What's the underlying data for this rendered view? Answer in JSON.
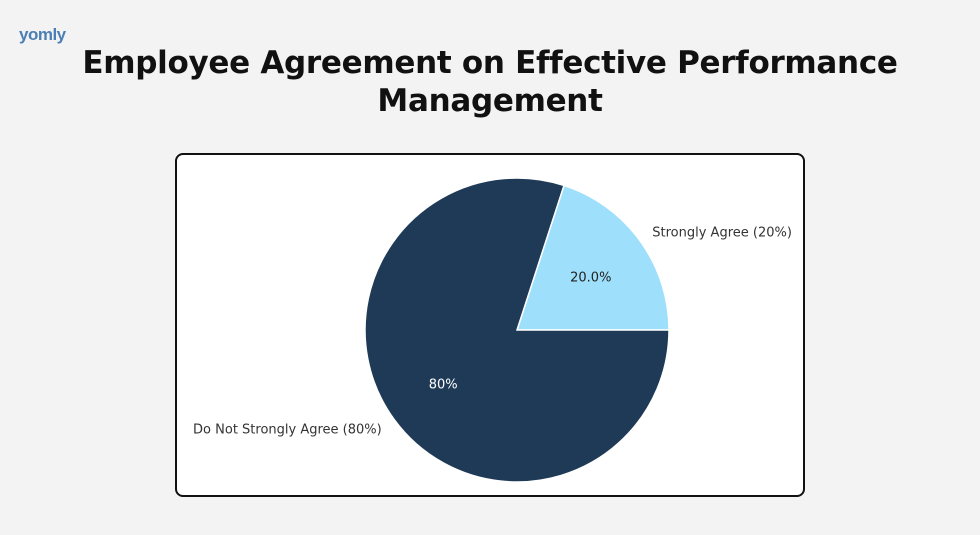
{
  "logo": {
    "text": "yomly"
  },
  "chart_data": {
    "type": "pie",
    "title": "Employee Agreement on Effective Performance Management",
    "slices": [
      {
        "label": "Strongly Agree (20%)",
        "value": 20,
        "pct_label": "20.0%",
        "color": "#9ee0fb",
        "text_color": "#222222"
      },
      {
        "label": "Do Not Strongly Agree (80%)",
        "value": 80,
        "pct_label": "80%",
        "color": "#1f3a56",
        "text_color": "#ffffff"
      }
    ],
    "start_angle_deg": 0,
    "direction": "counterclockwise",
    "legend": "none"
  }
}
